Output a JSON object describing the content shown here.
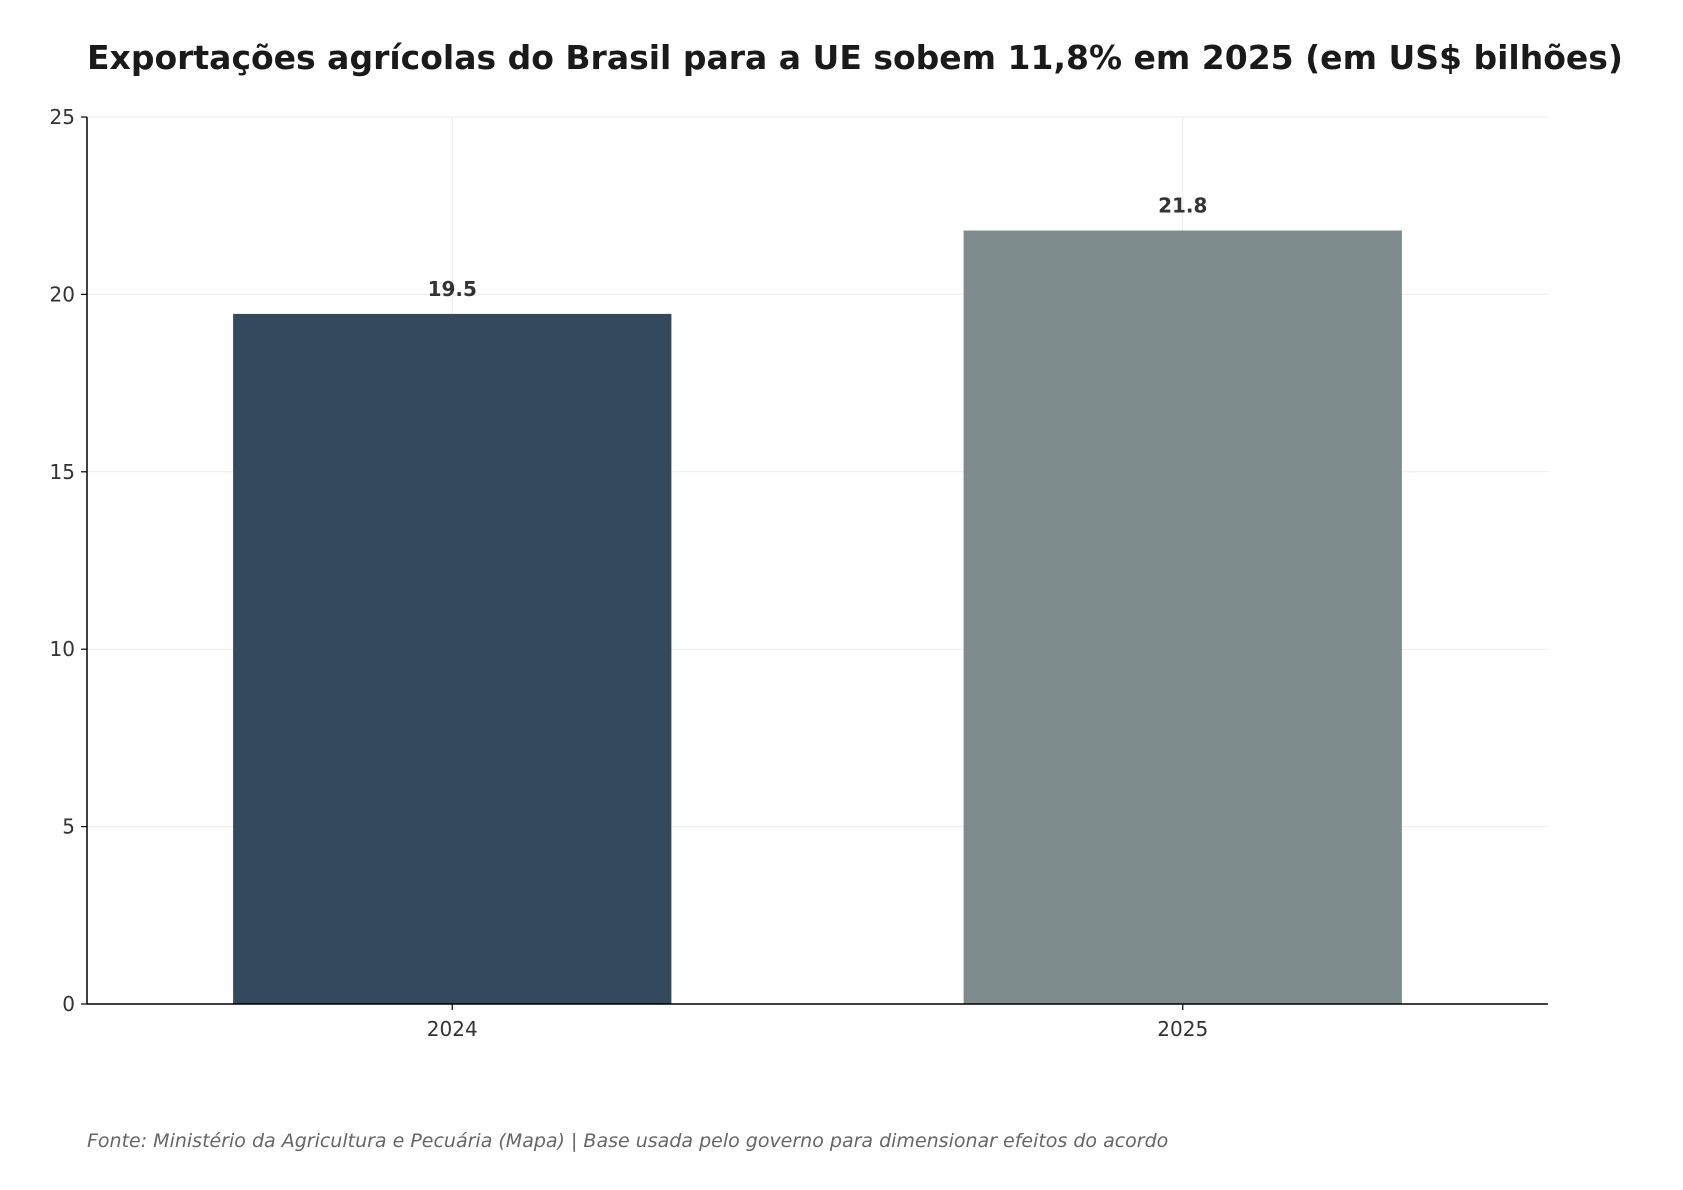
{
  "chart_data": {
    "type": "bar",
    "title": "Exportações agrícolas do Brasil para a UE sobem 11,8% em 2025 (em US$ bilhões)",
    "categories": [
      "2024",
      "2025"
    ],
    "values": [
      19.45,
      21.8
    ],
    "value_labels": [
      "19.5",
      "21.8"
    ],
    "bar_colors": [
      "#34495e",
      "#7f8c8d"
    ],
    "xlabel": "",
    "ylabel": "",
    "ylim": [
      0,
      25
    ],
    "yticks": [
      0,
      5,
      10,
      15,
      20,
      25
    ],
    "grid": true,
    "source": "Fonte: Ministério da Agricultura e Pecuária (Mapa) | Base usada pelo governo para dimensionar efeitos do acordo"
  }
}
